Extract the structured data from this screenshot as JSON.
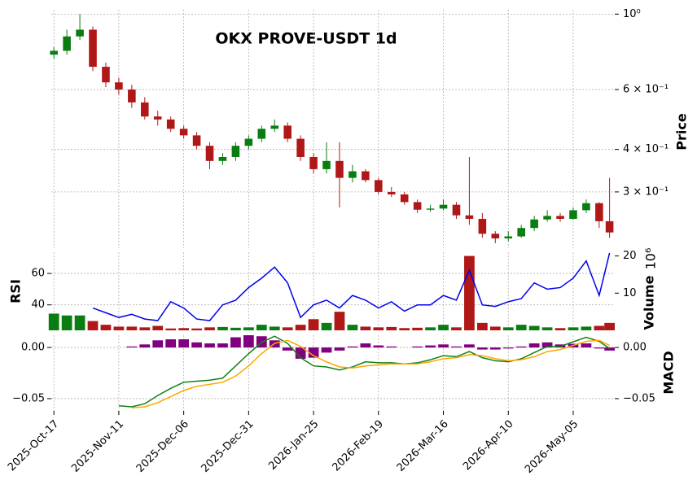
{
  "chart_data": [
    {
      "type": "candlestick",
      "title": "OKX PROVE-USDT 1d",
      "ylabel": "Price",
      "log_y": true,
      "grid": true,
      "up_color": "#0a7d12",
      "down_color": "#b01818",
      "x": [
        0,
        5,
        10,
        15,
        20,
        25,
        30,
        35,
        40,
        45,
        50,
        55,
        60,
        65,
        70,
        75,
        80,
        85,
        90,
        95,
        100,
        105,
        110,
        115,
        120,
        125,
        130,
        135,
        140,
        145,
        150,
        155,
        160,
        165,
        170,
        175,
        180,
        185,
        190,
        195,
        200,
        205,
        210,
        214
      ],
      "xlim": [
        -1,
        216
      ],
      "open": [
        0.76,
        0.78,
        0.86,
        0.9,
        0.7,
        0.63,
        0.6,
        0.55,
        0.5,
        0.49,
        0.46,
        0.44,
        0.41,
        0.37,
        0.38,
        0.41,
        0.43,
        0.46,
        0.47,
        0.43,
        0.38,
        0.35,
        0.37,
        0.33,
        0.345,
        0.325,
        0.3,
        0.295,
        0.28,
        0.266,
        0.268,
        0.275,
        0.256,
        0.25,
        0.226,
        0.219,
        0.222,
        0.235,
        0.249,
        0.255,
        0.25,
        0.265,
        0.278,
        0.246
      ],
      "high": [
        0.8,
        0.9,
        1.0,
        0.92,
        0.72,
        0.65,
        0.62,
        0.57,
        0.52,
        0.5,
        0.47,
        0.45,
        0.42,
        0.39,
        0.42,
        0.44,
        0.47,
        0.49,
        0.48,
        0.44,
        0.39,
        0.42,
        0.42,
        0.36,
        0.35,
        0.33,
        0.31,
        0.3,
        0.285,
        0.275,
        0.285,
        0.28,
        0.38,
        0.26,
        0.23,
        0.23,
        0.24,
        0.255,
        0.265,
        0.26,
        0.27,
        0.285,
        0.28,
        0.33
      ],
      "low": [
        0.74,
        0.76,
        0.84,
        0.68,
        0.61,
        0.58,
        0.53,
        0.49,
        0.47,
        0.45,
        0.43,
        0.4,
        0.35,
        0.36,
        0.37,
        0.4,
        0.42,
        0.45,
        0.42,
        0.37,
        0.34,
        0.34,
        0.27,
        0.32,
        0.32,
        0.295,
        0.29,
        0.275,
        0.26,
        0.262,
        0.265,
        0.25,
        0.24,
        0.22,
        0.212,
        0.215,
        0.22,
        0.23,
        0.245,
        0.245,
        0.248,
        0.26,
        0.235,
        0.22
      ],
      "close": [
        0.78,
        0.86,
        0.9,
        0.7,
        0.63,
        0.6,
        0.55,
        0.5,
        0.49,
        0.46,
        0.44,
        0.41,
        0.37,
        0.38,
        0.41,
        0.43,
        0.46,
        0.47,
        0.43,
        0.38,
        0.35,
        0.37,
        0.33,
        0.345,
        0.325,
        0.3,
        0.295,
        0.28,
        0.266,
        0.268,
        0.275,
        0.256,
        0.25,
        0.226,
        0.219,
        0.222,
        0.235,
        0.249,
        0.255,
        0.25,
        0.265,
        0.278,
        0.246,
        0.228
      ],
      "ylim": [
        0.205,
        1.03
      ],
      "yticks": [
        {
          "value": 1.0,
          "label": "10⁰"
        },
        {
          "value": 0.6,
          "label": "6 × 10⁻¹"
        },
        {
          "value": 0.4,
          "label": "4 × 10⁻¹"
        },
        {
          "value": 0.3,
          "label": "3 × 10⁻¹"
        }
      ]
    },
    {
      "type": "volume_rsi",
      "ylabel": "RSI",
      "y2label": "Volume",
      "y2_scale": "10⁶",
      "grid": true,
      "rsi": {
        "color": "#0000ee",
        "values": [
          null,
          null,
          null,
          38,
          35,
          32,
          34,
          31,
          30,
          42,
          38,
          31,
          30,
          40,
          43,
          51,
          57,
          64,
          54,
          32,
          40,
          43,
          38,
          46,
          43,
          38,
          42,
          36,
          40,
          40,
          46,
          43,
          62,
          40,
          39,
          42,
          44,
          54,
          50,
          51,
          57,
          68,
          46,
          73
        ]
      },
      "volume": {
        "values": [
          4.5,
          4,
          4,
          2.5,
          1.5,
          1,
          1,
          0.8,
          1.2,
          0.5,
          0.6,
          0.5,
          0.8,
          0.9,
          0.7,
          0.8,
          1.5,
          1,
          0.8,
          1.5,
          3,
          2,
          5,
          1.5,
          1,
          0.8,
          0.9,
          0.6,
          0.7,
          0.8,
          1.5,
          0.8,
          20,
          2,
          1,
          0.8,
          1.5,
          1.2,
          0.8,
          0.6,
          0.8,
          1,
          1.2,
          2
        ]
      },
      "ylim": [
        23.8,
        73.5
      ],
      "yticks": [
        40,
        60
      ],
      "y2lim": [
        0,
        21
      ],
      "y2ticks": [
        10,
        20
      ]
    },
    {
      "type": "macd",
      "ylabel": "MACD",
      "grid": true,
      "macd": {
        "color": "#108010",
        "values": [
          null,
          null,
          null,
          null,
          null,
          -0.057,
          -0.058,
          -0.055,
          -0.047,
          -0.04,
          -0.034,
          -0.033,
          -0.032,
          -0.03,
          -0.018,
          -0.006,
          0.005,
          0.011,
          0.004,
          -0.01,
          -0.018,
          -0.019,
          -0.022,
          -0.019,
          -0.014,
          -0.015,
          -0.015,
          -0.016,
          -0.015,
          -0.012,
          -0.008,
          -0.009,
          -0.004,
          -0.01,
          -0.013,
          -0.014,
          -0.011,
          -0.005,
          0.001,
          0.001,
          0.0056,
          0.01,
          0.006,
          -0.001
        ]
      },
      "signal": {
        "color": "#ffa500",
        "values": [
          null,
          null,
          null,
          null,
          null,
          null,
          -0.059,
          -0.058,
          -0.054,
          -0.048,
          -0.042,
          -0.038,
          -0.036,
          -0.034,
          -0.028,
          -0.018,
          -0.006,
          0.004,
          0.007,
          0.001,
          -0.008,
          -0.014,
          -0.019,
          -0.02,
          -0.018,
          -0.017,
          -0.016,
          -0.016,
          -0.016,
          -0.014,
          -0.011,
          -0.01,
          -0.007,
          -0.008,
          -0.011,
          -0.013,
          -0.012,
          -0.009,
          -0.004,
          -0.002,
          0.002,
          0.006,
          0.007,
          0.002
        ]
      },
      "histogram": {
        "color": "#800080",
        "values": [
          null,
          null,
          null,
          null,
          null,
          null,
          0.001,
          0.003,
          0.007,
          0.008,
          0.008,
          0.005,
          0.004,
          0.004,
          0.01,
          0.012,
          0.011,
          0.007,
          -0.003,
          -0.011,
          -0.01,
          -0.005,
          -0.003,
          0.001,
          0.004,
          0.002,
          0.001,
          0,
          0.001,
          0.002,
          0.003,
          0.001,
          0.003,
          -0.002,
          -0.002,
          -0.001,
          0.001,
          0.004,
          0.005,
          0.003,
          0.0036,
          0.004,
          -0.001,
          -0.003
        ]
      },
      "ylim": [
        -0.062,
        0.012
      ],
      "yticks": [
        {
          "value": 0,
          "label": "0.00"
        },
        {
          "value": -0.05,
          "label": "−0.05"
        }
      ],
      "xticks": [
        {
          "value": 0,
          "label": "2025-Oct-17"
        },
        {
          "value": 25,
          "label": "2025-Nov-11"
        },
        {
          "value": 50,
          "label": "2025-Dec-06"
        },
        {
          "value": 75,
          "label": "2025-Dec-31"
        },
        {
          "value": 100,
          "label": "2026-Jan-25"
        },
        {
          "value": 125,
          "label": "2026-Feb-19"
        },
        {
          "value": 150,
          "label": "2026-Mar-16"
        },
        {
          "value": 175,
          "label": "2026-Apr-10"
        },
        {
          "value": 200,
          "label": "2026-May-05"
        }
      ]
    }
  ]
}
